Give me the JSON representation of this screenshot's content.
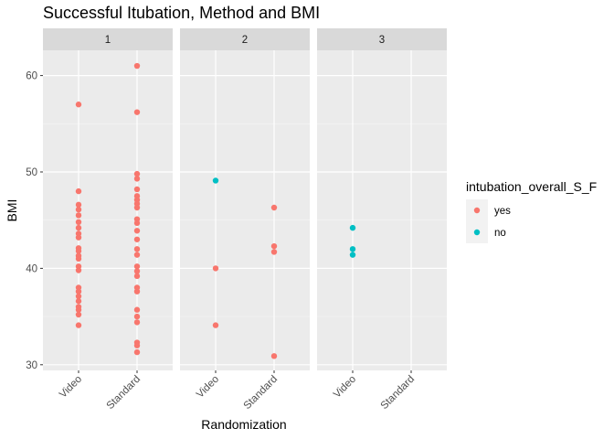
{
  "chart_data": {
    "type": "scatter",
    "title": "Successful Itubation, Method and BMI",
    "xlabel": "Randomization",
    "ylabel": "BMI",
    "categories": [
      "Video",
      "Standard"
    ],
    "facets": [
      "1",
      "2",
      "3"
    ],
    "ylim": [
      29.4,
      62.2
    ],
    "yticks": [
      30,
      40,
      50,
      60
    ],
    "grid": true,
    "legend": {
      "title": "intubation_overall_S_F",
      "position": "right",
      "entries": [
        {
          "label": "yes",
          "color": "#F8766D"
        },
        {
          "label": "no",
          "color": "#00BFC4"
        }
      ]
    },
    "series": [
      {
        "name": "yes",
        "color": "#F8766D",
        "points": [
          {
            "facet": "1",
            "x": "Video",
            "y": 57.0
          },
          {
            "facet": "1",
            "x": "Video",
            "y": 48.0
          },
          {
            "facet": "1",
            "x": "Video",
            "y": 46.6
          },
          {
            "facet": "1",
            "x": "Video",
            "y": 46.1
          },
          {
            "facet": "1",
            "x": "Video",
            "y": 45.5
          },
          {
            "facet": "1",
            "x": "Video",
            "y": 44.8
          },
          {
            "facet": "1",
            "x": "Video",
            "y": 44.2
          },
          {
            "facet": "1",
            "x": "Video",
            "y": 43.6
          },
          {
            "facet": "1",
            "x": "Video",
            "y": 43.2
          },
          {
            "facet": "1",
            "x": "Video",
            "y": 42.1
          },
          {
            "facet": "1",
            "x": "Video",
            "y": 41.8
          },
          {
            "facet": "1",
            "x": "Video",
            "y": 41.3
          },
          {
            "facet": "1",
            "x": "Video",
            "y": 41.0
          },
          {
            "facet": "1",
            "x": "Video",
            "y": 40.2
          },
          {
            "facet": "1",
            "x": "Video",
            "y": 39.8
          },
          {
            "facet": "1",
            "x": "Video",
            "y": 38.0
          },
          {
            "facet": "1",
            "x": "Video",
            "y": 37.6
          },
          {
            "facet": "1",
            "x": "Video",
            "y": 37.1
          },
          {
            "facet": "1",
            "x": "Video",
            "y": 36.6
          },
          {
            "facet": "1",
            "x": "Video",
            "y": 36.0
          },
          {
            "facet": "1",
            "x": "Video",
            "y": 35.7
          },
          {
            "facet": "1",
            "x": "Video",
            "y": 35.2
          },
          {
            "facet": "1",
            "x": "Video",
            "y": 34.1
          },
          {
            "facet": "1",
            "x": "Standard",
            "y": 61.0
          },
          {
            "facet": "1",
            "x": "Standard",
            "y": 56.2
          },
          {
            "facet": "1",
            "x": "Standard",
            "y": 49.8
          },
          {
            "facet": "1",
            "x": "Standard",
            "y": 49.3
          },
          {
            "facet": "1",
            "x": "Standard",
            "y": 48.2
          },
          {
            "facet": "1",
            "x": "Standard",
            "y": 47.5
          },
          {
            "facet": "1",
            "x": "Standard",
            "y": 47.1
          },
          {
            "facet": "1",
            "x": "Standard",
            "y": 46.7
          },
          {
            "facet": "1",
            "x": "Standard",
            "y": 46.3
          },
          {
            "facet": "1",
            "x": "Standard",
            "y": 45.1
          },
          {
            "facet": "1",
            "x": "Standard",
            "y": 44.7
          },
          {
            "facet": "1",
            "x": "Standard",
            "y": 43.9
          },
          {
            "facet": "1",
            "x": "Standard",
            "y": 43.0
          },
          {
            "facet": "1",
            "x": "Standard",
            "y": 42.0
          },
          {
            "facet": "1",
            "x": "Standard",
            "y": 41.4
          },
          {
            "facet": "1",
            "x": "Standard",
            "y": 40.2
          },
          {
            "facet": "1",
            "x": "Standard",
            "y": 39.7
          },
          {
            "facet": "1",
            "x": "Standard",
            "y": 39.2
          },
          {
            "facet": "1",
            "x": "Standard",
            "y": 38.0
          },
          {
            "facet": "1",
            "x": "Standard",
            "y": 37.6
          },
          {
            "facet": "1",
            "x": "Standard",
            "y": 35.7
          },
          {
            "facet": "1",
            "x": "Standard",
            "y": 35.0
          },
          {
            "facet": "1",
            "x": "Standard",
            "y": 34.4
          },
          {
            "facet": "1",
            "x": "Standard",
            "y": 32.3
          },
          {
            "facet": "1",
            "x": "Standard",
            "y": 32.0
          },
          {
            "facet": "1",
            "x": "Standard",
            "y": 31.3
          },
          {
            "facet": "2",
            "x": "Video",
            "y": 40.0
          },
          {
            "facet": "2",
            "x": "Video",
            "y": 34.1
          },
          {
            "facet": "2",
            "x": "Standard",
            "y": 46.3
          },
          {
            "facet": "2",
            "x": "Standard",
            "y": 42.3
          },
          {
            "facet": "2",
            "x": "Standard",
            "y": 41.7
          },
          {
            "facet": "2",
            "x": "Standard",
            "y": 30.9
          }
        ]
      },
      {
        "name": "no",
        "color": "#00BFC4",
        "points": [
          {
            "facet": "2",
            "x": "Video",
            "y": 49.1
          },
          {
            "facet": "3",
            "x": "Video",
            "y": 44.2
          },
          {
            "facet": "3",
            "x": "Video",
            "y": 42.0
          },
          {
            "facet": "3",
            "x": "Video",
            "y": 41.4
          }
        ]
      }
    ]
  }
}
